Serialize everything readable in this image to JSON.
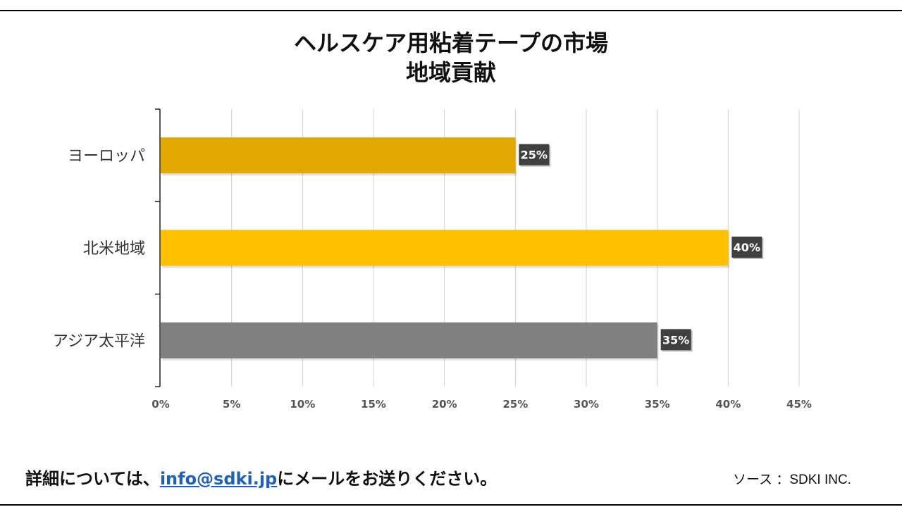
{
  "title_line1": "ヘルスケア用粘着テープの市場",
  "title_line2": "地域貢献",
  "footer": {
    "prefix": "詳細については、",
    "email": "info@sdki.jp",
    "suffix": "にメールをお送りください。",
    "source": "ソース ：SDKI INC."
  },
  "chart_data": {
    "type": "bar",
    "orientation": "horizontal",
    "title": "ヘルスケア用粘着テープの市場 地域貢献",
    "categories": [
      "ヨーロッパ",
      "北米地域",
      "アジア太平洋"
    ],
    "values": [
      25,
      40,
      35
    ],
    "value_labels": [
      "25%",
      "40%",
      "35%"
    ],
    "colors": [
      "#e0a800",
      "#ffc000",
      "#808080"
    ],
    "xlim": [
      0,
      45
    ],
    "xticks": [
      "0%",
      "5%",
      "10%",
      "15%",
      "20%",
      "25%",
      "30%",
      "35%",
      "40%",
      "45%"
    ],
    "grid": true,
    "legend": "none"
  }
}
